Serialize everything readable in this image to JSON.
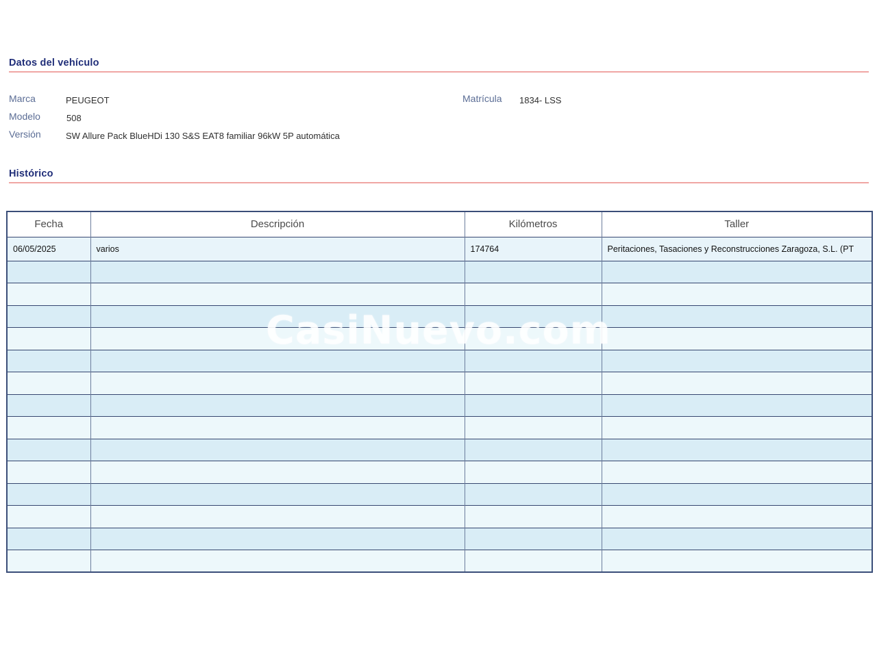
{
  "vehicle": {
    "section_title": "Datos del vehículo",
    "marca_label": "Marca",
    "marca_value": "PEUGEOT",
    "modelo_label": "Modelo",
    "modelo_value": "508",
    "version_label": "Versión",
    "version_value": "SW Allure Pack BlueHDi 130 S&S EAT8 familiar 96kW 5P automática",
    "matricula_label": "Matrícula",
    "matricula_value": "1834- LSS"
  },
  "history": {
    "section_title": "Histórico",
    "table": {
      "columns": [
        "Fecha",
        "Descripción",
        "Kilómetros",
        "Taller"
      ],
      "rows": [
        [
          "06/05/2025",
          "varios",
          "174764",
          "Peritaciones, Tasaciones y Reconstrucciones Zaragoza, S.L. (PT"
        ]
      ],
      "empty_row_count": 14
    }
  },
  "watermark": {
    "text": "CasiNuevo.com"
  },
  "colors": {
    "section_title_navy": "#1f2d78",
    "label_blue": "#5b6d95",
    "rule_salmon": "#f0a6a3",
    "table_border": "#35466f",
    "row_data": "#e8f4fa",
    "row_stripe_dark": "#d9edf6",
    "row_stripe_light": "#edf8fb"
  }
}
